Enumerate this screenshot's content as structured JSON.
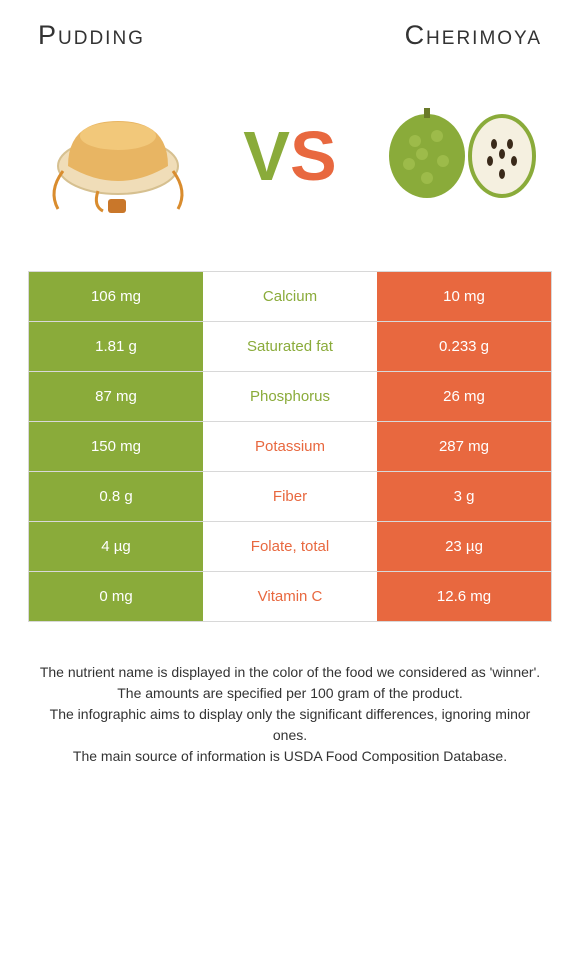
{
  "titles": {
    "left": "Pudding",
    "right": "Cherimoya"
  },
  "vs": {
    "v": "V",
    "s": "S"
  },
  "colors": {
    "left_bg": "#8aab3a",
    "right_bg": "#e8683f",
    "left_text": "#8aab3a",
    "right_text": "#e8683f"
  },
  "rows": [
    {
      "left": "106 mg",
      "label": "Calcium",
      "right": "10 mg",
      "winner": "left"
    },
    {
      "left": "1.81 g",
      "label": "Saturated fat",
      "right": "0.233 g",
      "winner": "left"
    },
    {
      "left": "87 mg",
      "label": "Phosphorus",
      "right": "26 mg",
      "winner": "left"
    },
    {
      "left": "150 mg",
      "label": "Potassium",
      "right": "287 mg",
      "winner": "right"
    },
    {
      "left": "0.8 g",
      "label": "Fiber",
      "right": "3 g",
      "winner": "right"
    },
    {
      "left": "4 µg",
      "label": "Folate, total",
      "right": "23 µg",
      "winner": "right"
    },
    {
      "left": "0 mg",
      "label": "Vitamin C",
      "right": "12.6 mg",
      "winner": "right"
    }
  ],
  "footnotes": [
    "The nutrient name is displayed in the color of the food we considered as 'winner'.",
    "The amounts are specified per 100 gram of the product.",
    "The infographic aims to display only the significant differences, ignoring minor ones.",
    "The main source of information is USDA Food Composition Database."
  ]
}
